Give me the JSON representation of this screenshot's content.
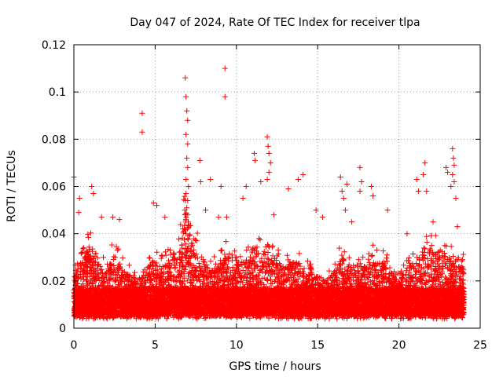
{
  "chart_data": {
    "type": "scatter",
    "title": "Day 047 of 2024, Rate Of TEC Index for receiver tlpa",
    "xlabel": "GPS time / hours",
    "ylabel": "ROTI / TECUs",
    "xlim": [
      0,
      25
    ],
    "ylim": [
      0,
      0.12
    ],
    "x_ticks": [
      0,
      5,
      10,
      15,
      20,
      25
    ],
    "x_tick_labels": [
      "0",
      "5",
      "10",
      "15",
      "20",
      "25"
    ],
    "y_ticks": [
      0,
      0.02,
      0.04,
      0.06,
      0.08,
      0.1,
      0.12
    ],
    "y_tick_labels": [
      "0",
      "0.02",
      "0.04",
      "0.06",
      "0.08",
      "0.1",
      "0.12"
    ],
    "grid": true,
    "marker": "+",
    "color": "#ff0000",
    "series": [
      {
        "name": "ROTI",
        "envelope": [
          [
            0.0,
            0.024
          ],
          [
            0.5,
            0.03
          ],
          [
            1.0,
            0.034
          ],
          [
            1.5,
            0.028
          ],
          [
            2.0,
            0.024
          ],
          [
            2.5,
            0.032
          ],
          [
            3.0,
            0.026
          ],
          [
            3.5,
            0.022
          ],
          [
            4.0,
            0.021
          ],
          [
            4.5,
            0.024
          ],
          [
            5.0,
            0.03
          ],
          [
            5.5,
            0.026
          ],
          [
            6.0,
            0.03
          ],
          [
            6.5,
            0.034
          ],
          [
            6.9,
            0.05
          ],
          [
            7.3,
            0.036
          ],
          [
            8.0,
            0.03
          ],
          [
            8.5,
            0.024
          ],
          [
            9.0,
            0.028
          ],
          [
            9.5,
            0.032
          ],
          [
            10.0,
            0.03
          ],
          [
            10.5,
            0.028
          ],
          [
            11.0,
            0.034
          ],
          [
            11.5,
            0.032
          ],
          [
            12.0,
            0.036
          ],
          [
            12.5,
            0.028
          ],
          [
            13.0,
            0.026
          ],
          [
            13.5,
            0.028
          ],
          [
            14.0,
            0.026
          ],
          [
            14.5,
            0.024
          ],
          [
            15.0,
            0.022
          ],
          [
            15.5,
            0.02
          ],
          [
            16.0,
            0.024
          ],
          [
            16.5,
            0.03
          ],
          [
            17.0,
            0.026
          ],
          [
            17.5,
            0.028
          ],
          [
            18.0,
            0.026
          ],
          [
            18.5,
            0.03
          ],
          [
            19.0,
            0.028
          ],
          [
            19.5,
            0.024
          ],
          [
            20.0,
            0.02
          ],
          [
            20.5,
            0.026
          ],
          [
            21.0,
            0.028
          ],
          [
            21.5,
            0.032
          ],
          [
            22.0,
            0.034
          ],
          [
            22.5,
            0.032
          ],
          [
            23.0,
            0.03
          ],
          [
            23.5,
            0.028
          ],
          [
            24.0,
            0.026
          ]
        ],
        "outliers": [
          [
            0.0,
            0.064
          ],
          [
            0.3,
            0.049
          ],
          [
            0.35,
            0.055
          ],
          [
            1.1,
            0.06
          ],
          [
            1.2,
            0.057
          ],
          [
            1.7,
            0.047
          ],
          [
            2.4,
            0.047
          ],
          [
            2.8,
            0.046
          ],
          [
            4.2,
            0.091
          ],
          [
            4.2,
            0.083
          ],
          [
            4.9,
            0.053
          ],
          [
            5.1,
            0.052
          ],
          [
            5.6,
            0.047
          ],
          [
            6.7,
            0.042
          ],
          [
            6.85,
            0.106
          ],
          [
            6.9,
            0.098
          ],
          [
            6.95,
            0.092
          ],
          [
            7.0,
            0.088
          ],
          [
            6.9,
            0.082
          ],
          [
            7.0,
            0.078
          ],
          [
            6.95,
            0.072
          ],
          [
            7.0,
            0.068
          ],
          [
            6.9,
            0.063
          ],
          [
            7.05,
            0.06
          ],
          [
            6.9,
            0.057
          ],
          [
            7.0,
            0.054
          ],
          [
            6.95,
            0.051
          ],
          [
            7.0,
            0.048
          ],
          [
            6.9,
            0.046
          ],
          [
            7.75,
            0.071
          ],
          [
            7.8,
            0.062
          ],
          [
            8.1,
            0.05
          ],
          [
            8.4,
            0.063
          ],
          [
            8.9,
            0.047
          ],
          [
            9.05,
            0.06
          ],
          [
            9.3,
            0.11
          ],
          [
            9.3,
            0.098
          ],
          [
            9.4,
            0.047
          ],
          [
            10.4,
            0.055
          ],
          [
            10.6,
            0.06
          ],
          [
            11.1,
            0.074
          ],
          [
            11.15,
            0.071
          ],
          [
            11.5,
            0.062
          ],
          [
            11.9,
            0.081
          ],
          [
            11.95,
            0.077
          ],
          [
            12.0,
            0.074
          ],
          [
            12.1,
            0.07
          ],
          [
            12.0,
            0.066
          ],
          [
            11.9,
            0.063
          ],
          [
            12.3,
            0.048
          ],
          [
            13.2,
            0.059
          ],
          [
            13.8,
            0.063
          ],
          [
            14.1,
            0.065
          ],
          [
            14.9,
            0.05
          ],
          [
            15.3,
            0.047
          ],
          [
            16.4,
            0.064
          ],
          [
            16.5,
            0.058
          ],
          [
            16.6,
            0.055
          ],
          [
            16.7,
            0.05
          ],
          [
            16.8,
            0.061
          ],
          [
            17.1,
            0.045
          ],
          [
            17.6,
            0.068
          ],
          [
            17.7,
            0.062
          ],
          [
            17.6,
            0.058
          ],
          [
            18.3,
            0.06
          ],
          [
            18.4,
            0.056
          ],
          [
            19.3,
            0.05
          ],
          [
            20.5,
            0.04
          ],
          [
            21.1,
            0.063
          ],
          [
            21.2,
            0.058
          ],
          [
            21.5,
            0.065
          ],
          [
            21.6,
            0.07
          ],
          [
            21.7,
            0.058
          ],
          [
            22.1,
            0.045
          ],
          [
            22.9,
            0.068
          ],
          [
            23.0,
            0.066
          ],
          [
            23.3,
            0.076
          ],
          [
            23.35,
            0.072
          ],
          [
            23.4,
            0.069
          ],
          [
            23.3,
            0.065
          ],
          [
            23.4,
            0.062
          ],
          [
            23.2,
            0.06
          ],
          [
            23.5,
            0.055
          ],
          [
            23.6,
            0.043
          ]
        ]
      }
    ]
  }
}
